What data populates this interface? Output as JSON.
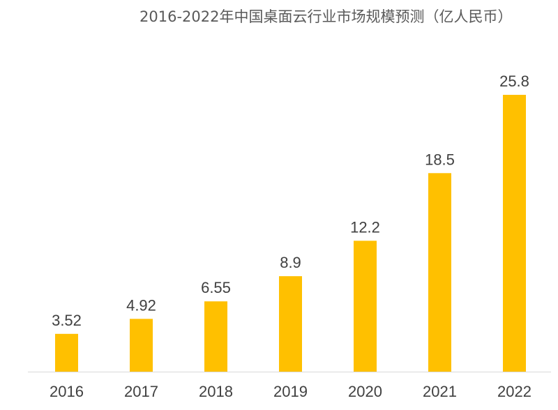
{
  "chart_data": {
    "type": "bar",
    "title": "2016-2022年中国桌面云行业市场规模预测（亿人民币）",
    "xlabel": "",
    "ylabel": "",
    "categories": [
      "2016",
      "2017",
      "2018",
      "2019",
      "2020",
      "2021",
      "2022"
    ],
    "values": [
      3.52,
      4.92,
      6.55,
      8.9,
      12.2,
      18.5,
      25.8
    ],
    "value_labels": [
      "3.52",
      "4.92",
      "6.55",
      "8.9",
      "12.2",
      "18.5",
      "25.8"
    ],
    "ylim": [
      0,
      25.8
    ],
    "grid": false,
    "legend": "none",
    "bar_color": "#FFC000",
    "axis_color": "#D9D9D9",
    "text_color": "#404040"
  }
}
